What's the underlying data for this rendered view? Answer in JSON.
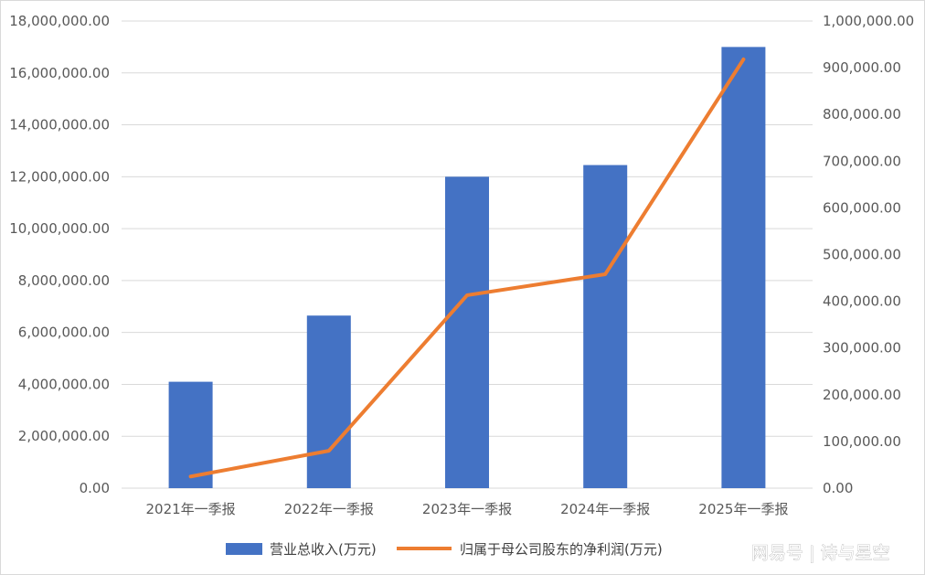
{
  "chart_data": {
    "type": "bar+line",
    "categories": [
      "2021年一季报",
      "2022年一季报",
      "2023年一季报",
      "2024年一季报",
      "2025年一季报"
    ],
    "series": [
      {
        "name": "营业总收入(万元)",
        "type": "bar",
        "axis": "left",
        "color": "#4472c4",
        "values": [
          4100000,
          6650000,
          12000000,
          12450000,
          17000000
        ]
      },
      {
        "name": "归属于母公司股东的净利润(万元)",
        "type": "line",
        "axis": "right",
        "color": "#ed7d31",
        "values": [
          25000,
          80000,
          413000,
          458000,
          918000
        ]
      }
    ],
    "y_left": {
      "ylim": [
        0,
        18000000
      ],
      "ticks": [
        0,
        2000000,
        4000000,
        6000000,
        8000000,
        10000000,
        12000000,
        14000000,
        16000000,
        18000000
      ],
      "tick_labels": [
        "0.00",
        "2,000,000.00",
        "4,000,000.00",
        "6,000,000.00",
        "8,000,000.00",
        "10,000,000.00",
        "12,000,000.00",
        "14,000,000.00",
        "16,000,000.00",
        "18,000,000.00"
      ]
    },
    "y_right": {
      "ylim": [
        0,
        1000000
      ],
      "ticks": [
        0,
        100000,
        200000,
        300000,
        400000,
        500000,
        600000,
        700000,
        800000,
        900000,
        1000000
      ],
      "tick_labels": [
        "0.00",
        "100,000.00",
        "200,000.00",
        "300,000.00",
        "400,000.00",
        "500,000.00",
        "600,000.00",
        "700,000.00",
        "800,000.00",
        "900,000.00",
        "1,000,000.00"
      ]
    },
    "grid": true,
    "legend": "bottom"
  },
  "watermark": "网易号 | 诗与星空",
  "colors": {
    "grid": "#d9d9d9",
    "tick_text": "#595959"
  }
}
